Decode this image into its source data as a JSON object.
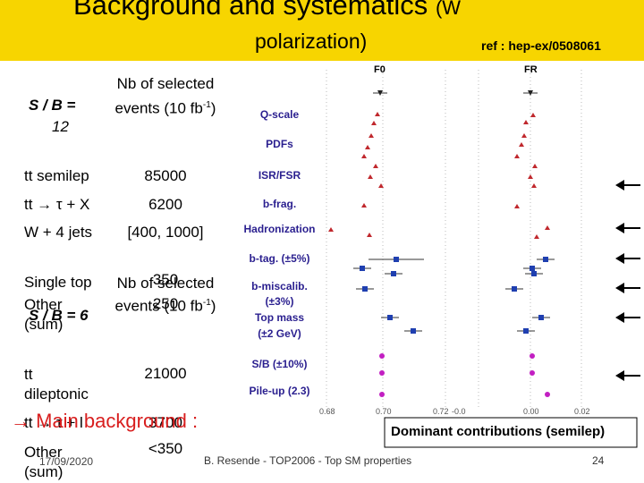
{
  "header": {
    "title_line1": "Background and systematics",
    "title_line1_tail": "(W",
    "title_line2": "polarization)",
    "ref": "ref : hep-ex/0508061"
  },
  "table1": {
    "ratio": "S / B =",
    "ratio_value": "12",
    "col_header": "Nb of selected events (10",
    "unit": "fb",
    "unit_exp": "-1",
    "unit_close": ")",
    "rows": [
      [
        "tt semilep",
        "85000"
      ],
      [
        "tt → τ + X",
        "6200"
      ],
      [
        "W + 4 jets",
        "[400, 1000]"
      ],
      [
        "Single top",
        "350"
      ],
      [
        "Other (sum)",
        "250"
      ]
    ]
  },
  "table2": {
    "ratio": "S / B = 6",
    "col_header": "Nb of selected events (10",
    "unit": "fb",
    "unit_exp": "-1",
    "unit_close": ")",
    "rows": [
      [
        "tt dileptonic",
        "21000"
      ],
      [
        "tt → τ + l",
        "3700"
      ],
      [
        "Other (sum)",
        "<350"
      ]
    ]
  },
  "main_background": "→ Main background :",
  "plot": {
    "panel_titles": [
      "F0",
      "FR"
    ],
    "labels": [
      "Q-scale",
      "PDFs",
      "ISR/FSR",
      "b-frag.",
      "Hadronization",
      "b-tag. (±5%)",
      "b-miscalib.",
      "(±3%)",
      "Top mass",
      "(±2 GeV)",
      "S/B (±10%)",
      "Pile-up (2.3)"
    ],
    "ticks": [
      "0.68",
      "0.70",
      "0.72",
      "-0.0",
      "0.00",
      "0.02"
    ]
  },
  "callout": "Dominant contributions (semilep)",
  "footer": {
    "date": "17/09/2020",
    "author": "B. Resende - TOP2006 - Top SM properties",
    "page": "24"
  }
}
